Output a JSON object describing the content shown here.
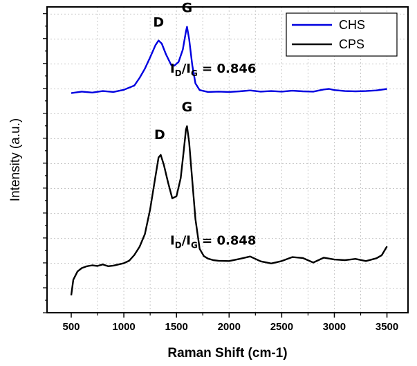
{
  "chart_data": {
    "type": "line",
    "xlabel": "Raman Shift (cm-1)",
    "ylabel": "Intensity (a.u.)",
    "xlim": [
      270,
      3700
    ],
    "ylim": [
      0,
      100
    ],
    "x_ticks": [
      500,
      1000,
      1500,
      2000,
      2500,
      3000,
      3500
    ],
    "x_tick_labels": [
      "500",
      "1000",
      "1500",
      "2000",
      "2500",
      "3000",
      "3500"
    ],
    "grid": true,
    "y_tick_labels_shown": false,
    "legend_position": "top-right",
    "series": [
      {
        "name": "CHS",
        "color": "#0000e0",
        "points": [
          [
            500,
            71.8
          ],
          [
            600,
            72.3
          ],
          [
            700,
            72.0
          ],
          [
            800,
            72.5
          ],
          [
            900,
            72.2
          ],
          [
            1000,
            72.9
          ],
          [
            1100,
            74.3
          ],
          [
            1150,
            76.8
          ],
          [
            1200,
            79.8
          ],
          [
            1250,
            83.5
          ],
          [
            1300,
            87.5
          ],
          [
            1330,
            89.0
          ],
          [
            1360,
            88.0
          ],
          [
            1400,
            84.5
          ],
          [
            1450,
            81.0
          ],
          [
            1480,
            80.8
          ],
          [
            1520,
            82.0
          ],
          [
            1560,
            86.0
          ],
          [
            1590,
            92.0
          ],
          [
            1600,
            93.5
          ],
          [
            1620,
            89.5
          ],
          [
            1650,
            81.0
          ],
          [
            1680,
            75.0
          ],
          [
            1720,
            72.8
          ],
          [
            1800,
            72.2
          ],
          [
            1900,
            72.3
          ],
          [
            2000,
            72.2
          ],
          [
            2100,
            72.4
          ],
          [
            2200,
            72.7
          ],
          [
            2300,
            72.3
          ],
          [
            2400,
            72.5
          ],
          [
            2500,
            72.3
          ],
          [
            2600,
            72.6
          ],
          [
            2700,
            72.4
          ],
          [
            2800,
            72.3
          ],
          [
            2900,
            73.0
          ],
          [
            2950,
            73.2
          ],
          [
            3000,
            72.8
          ],
          [
            3100,
            72.5
          ],
          [
            3200,
            72.4
          ],
          [
            3300,
            72.5
          ],
          [
            3400,
            72.7
          ],
          [
            3500,
            73.2
          ]
        ]
      },
      {
        "name": "CPS",
        "color": "#000000",
        "points": [
          [
            500,
            5.7
          ],
          [
            520,
            10.8
          ],
          [
            560,
            13.5
          ],
          [
            600,
            14.6
          ],
          [
            650,
            15.2
          ],
          [
            700,
            15.5
          ],
          [
            750,
            15.3
          ],
          [
            800,
            15.8
          ],
          [
            850,
            15.2
          ],
          [
            900,
            15.4
          ],
          [
            950,
            15.8
          ],
          [
            1000,
            16.2
          ],
          [
            1050,
            17.0
          ],
          [
            1100,
            18.9
          ],
          [
            1150,
            21.6
          ],
          [
            1200,
            25.7
          ],
          [
            1250,
            33.8
          ],
          [
            1300,
            44.6
          ],
          [
            1330,
            50.8
          ],
          [
            1350,
            51.6
          ],
          [
            1380,
            48.4
          ],
          [
            1420,
            42.6
          ],
          [
            1460,
            37.4
          ],
          [
            1500,
            38.1
          ],
          [
            1540,
            44.0
          ],
          [
            1570,
            53.2
          ],
          [
            1590,
            59.9
          ],
          [
            1600,
            61.0
          ],
          [
            1620,
            55.8
          ],
          [
            1650,
            43.3
          ],
          [
            1680,
            30.6
          ],
          [
            1720,
            20.9
          ],
          [
            1760,
            18.5
          ],
          [
            1800,
            17.7
          ],
          [
            1850,
            17.2
          ],
          [
            1900,
            17.0
          ],
          [
            2000,
            16.9
          ],
          [
            2100,
            17.6
          ],
          [
            2200,
            18.4
          ],
          [
            2300,
            16.8
          ],
          [
            2400,
            16.1
          ],
          [
            2500,
            16.9
          ],
          [
            2600,
            18.2
          ],
          [
            2700,
            17.9
          ],
          [
            2800,
            16.4
          ],
          [
            2900,
            18.0
          ],
          [
            3000,
            17.4
          ],
          [
            3100,
            17.2
          ],
          [
            3200,
            17.6
          ],
          [
            3300,
            16.9
          ],
          [
            3400,
            17.8
          ],
          [
            3450,
            18.8
          ],
          [
            3500,
            21.7
          ]
        ]
      }
    ],
    "annotations": [
      {
        "text": "D",
        "x": 1330,
        "y": 93.5
      },
      {
        "text": "G",
        "x": 1600,
        "y": 98.3
      },
      {
        "text": "D",
        "x": 1340,
        "y": 56.8
      },
      {
        "text": "G",
        "x": 1600,
        "y": 65.8
      }
    ],
    "ratio_annotations": [
      {
        "main": "I",
        "sub1": "D",
        "mid": "/I",
        "sub2": "G",
        "value": " = 0.846",
        "x": 1440,
        "y": 78.5
      },
      {
        "main": "I",
        "sub1": "D",
        "mid": "/I",
        "sub2": "G",
        "value": " = 0.848",
        "x": 1440,
        "y": 22.3
      }
    ]
  }
}
